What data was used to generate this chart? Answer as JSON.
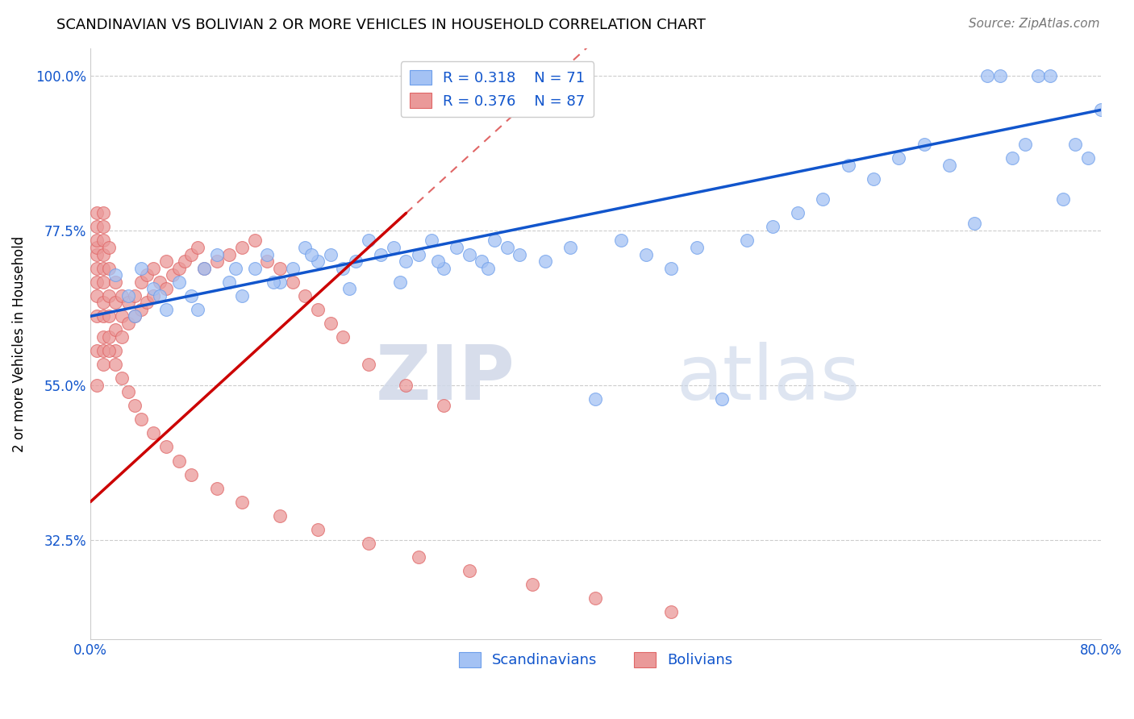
{
  "title": "SCANDINAVIAN VS BOLIVIAN 2 OR MORE VEHICLES IN HOUSEHOLD CORRELATION CHART",
  "source": "Source: ZipAtlas.com",
  "ylabel": "2 or more Vehicles in Household",
  "xlim": [
    0.0,
    80.0
  ],
  "ylim": [
    18.0,
    104.0
  ],
  "yticks": [
    32.5,
    55.0,
    77.5,
    100.0
  ],
  "ytick_labels": [
    "32.5%",
    "55.0%",
    "77.5%",
    "100.0%"
  ],
  "xticks": [
    0.0,
    16.0,
    32.0,
    48.0,
    64.0,
    80.0
  ],
  "xtick_labels": [
    "0.0%",
    "",
    "",
    "",
    "",
    "80.0%"
  ],
  "blue_R": 0.318,
  "blue_N": 71,
  "pink_R": 0.376,
  "pink_N": 87,
  "blue_color": "#a4c2f4",
  "pink_color": "#ea9999",
  "blue_edge_color": "#6d9eeb",
  "pink_edge_color": "#e06666",
  "blue_line_color": "#1155cc",
  "pink_line_color": "#cc0000",
  "axis_tick_color": "#1155cc",
  "legend_label_blue": "Scandinavians",
  "legend_label_pink": "Bolivians",
  "blue_scatter_x": [
    2.0,
    3.0,
    4.0,
    5.0,
    6.0,
    7.0,
    8.0,
    9.0,
    10.0,
    11.0,
    12.0,
    13.0,
    14.0,
    15.0,
    16.0,
    17.0,
    18.0,
    19.0,
    20.0,
    21.0,
    22.0,
    23.0,
    24.0,
    25.0,
    26.0,
    27.0,
    28.0,
    29.0,
    30.0,
    31.0,
    32.0,
    33.0,
    34.0,
    36.0,
    38.0,
    40.0,
    42.0,
    44.0,
    46.0,
    48.0,
    50.0,
    52.0,
    54.0,
    56.0,
    58.0,
    60.0,
    62.0,
    64.0,
    66.0,
    68.0,
    70.0,
    71.0,
    72.0,
    73.0,
    74.0,
    75.0,
    76.0,
    77.0,
    78.0,
    79.0,
    80.0,
    3.5,
    5.5,
    8.5,
    11.5,
    14.5,
    17.5,
    20.5,
    24.5,
    27.5,
    31.5
  ],
  "blue_scatter_y": [
    71.0,
    68.0,
    72.0,
    69.0,
    66.0,
    70.0,
    68.0,
    72.0,
    74.0,
    70.0,
    68.0,
    72.0,
    74.0,
    70.0,
    72.0,
    75.0,
    73.0,
    74.0,
    72.0,
    73.0,
    76.0,
    74.0,
    75.0,
    73.0,
    74.0,
    76.0,
    72.0,
    75.0,
    74.0,
    73.0,
    76.0,
    75.0,
    74.0,
    73.0,
    75.0,
    53.0,
    76.0,
    74.0,
    72.0,
    75.0,
    53.0,
    76.0,
    78.0,
    80.0,
    82.0,
    87.0,
    85.0,
    88.0,
    90.0,
    87.0,
    78.5,
    100.0,
    100.0,
    88.0,
    90.0,
    100.0,
    100.0,
    82.0,
    90.0,
    88.0,
    95.0,
    65.0,
    68.0,
    66.0,
    72.0,
    70.0,
    74.0,
    69.0,
    70.0,
    73.0,
    72.0
  ],
  "pink_scatter_x": [
    0.5,
    0.5,
    0.5,
    0.5,
    0.5,
    0.5,
    0.5,
    0.5,
    0.5,
    0.5,
    1.0,
    1.0,
    1.0,
    1.0,
    1.0,
    1.0,
    1.0,
    1.0,
    1.0,
    1.0,
    1.5,
    1.5,
    1.5,
    1.5,
    1.5,
    2.0,
    2.0,
    2.0,
    2.0,
    2.5,
    2.5,
    2.5,
    3.0,
    3.0,
    3.5,
    3.5,
    4.0,
    4.0,
    4.5,
    4.5,
    5.0,
    5.0,
    5.5,
    6.0,
    6.0,
    6.5,
    7.0,
    7.5,
    8.0,
    8.5,
    9.0,
    10.0,
    11.0,
    12.0,
    13.0,
    14.0,
    15.0,
    16.0,
    17.0,
    18.0,
    19.0,
    20.0,
    22.0,
    25.0,
    28.0,
    0.5,
    1.0,
    1.5,
    2.0,
    2.5,
    3.0,
    3.5,
    4.0,
    5.0,
    6.0,
    7.0,
    8.0,
    10.0,
    12.0,
    15.0,
    18.0,
    22.0,
    26.0,
    30.0,
    35.0,
    40.0,
    46.0
  ],
  "pink_scatter_y": [
    60.0,
    65.0,
    68.0,
    70.0,
    72.0,
    74.0,
    75.0,
    76.0,
    78.0,
    80.0,
    60.0,
    62.0,
    65.0,
    67.0,
    70.0,
    72.0,
    74.0,
    76.0,
    78.0,
    80.0,
    62.0,
    65.0,
    68.0,
    72.0,
    75.0,
    60.0,
    63.0,
    67.0,
    70.0,
    62.0,
    65.0,
    68.0,
    64.0,
    67.0,
    65.0,
    68.0,
    66.0,
    70.0,
    67.0,
    71.0,
    68.0,
    72.0,
    70.0,
    69.0,
    73.0,
    71.0,
    72.0,
    73.0,
    74.0,
    75.0,
    72.0,
    73.0,
    74.0,
    75.0,
    76.0,
    73.0,
    72.0,
    70.0,
    68.0,
    66.0,
    64.0,
    62.0,
    58.0,
    55.0,
    52.0,
    55.0,
    58.0,
    60.0,
    58.0,
    56.0,
    54.0,
    52.0,
    50.0,
    48.0,
    46.0,
    44.0,
    42.0,
    40.0,
    38.0,
    36.0,
    34.0,
    32.0,
    30.0,
    28.0,
    26.0,
    24.0,
    22.0
  ],
  "watermark_zip": "ZIP",
  "watermark_atlas": "atlas",
  "background_color": "#ffffff",
  "grid_color": "#cccccc",
  "blue_line_x0": 0.0,
  "blue_line_y0": 65.0,
  "blue_line_x1": 80.0,
  "blue_line_y1": 95.0,
  "pink_line_x0": 0.0,
  "pink_line_y0": 38.0,
  "pink_line_x1": 25.0,
  "pink_line_y1": 80.0
}
